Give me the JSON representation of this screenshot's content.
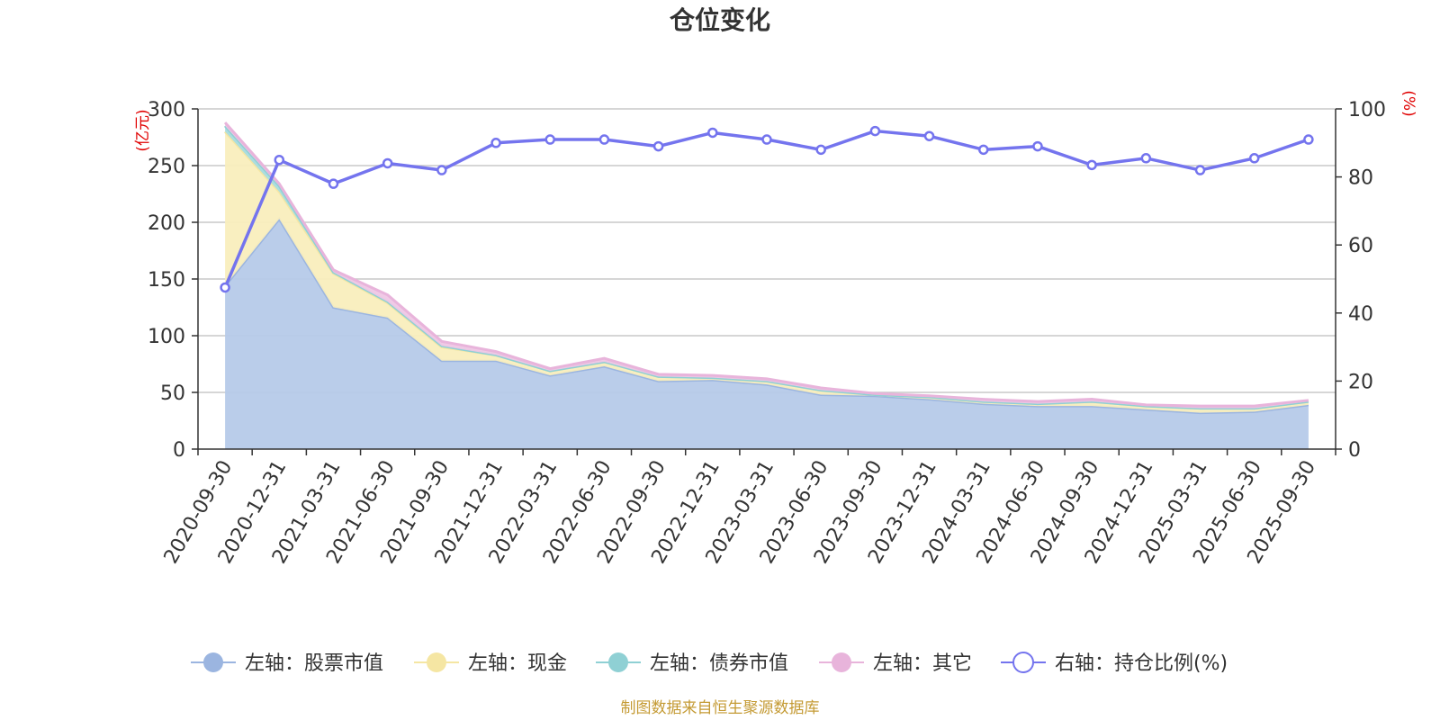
{
  "chart_data": {
    "type": "area",
    "title": "仓位变化",
    "categories": [
      "2020-09-30",
      "2020-12-31",
      "2021-03-31",
      "2021-06-30",
      "2021-09-30",
      "2021-12-31",
      "2022-03-31",
      "2022-06-30",
      "2022-09-30",
      "2022-12-31",
      "2023-03-31",
      "2023-06-30",
      "2023-09-30",
      "2023-12-31",
      "2024-03-31",
      "2024-06-30",
      "2024-09-30",
      "2024-12-31",
      "2025-03-31",
      "2025-06-30",
      "2025-09-30"
    ],
    "left_axis": {
      "unit": "(亿元)",
      "ylim": [
        0,
        300
      ],
      "ticks": [
        0,
        50,
        100,
        150,
        200,
        250,
        300
      ]
    },
    "right_axis": {
      "unit": "(%)",
      "ylim": [
        0,
        100
      ],
      "ticks": [
        0,
        20,
        40,
        60,
        80,
        100
      ]
    },
    "stacked_series": [
      {
        "name": "左轴：股票市值",
        "color": "#9bb5e0",
        "fill": "#b6cae9",
        "values": [
          144,
          203,
          125,
          116,
          78,
          78,
          65,
          73,
          60,
          61,
          57,
          48,
          47,
          44,
          40,
          38,
          38,
          35,
          32,
          33,
          39
        ]
      },
      {
        "name": "左轴：现金",
        "color": "#f5e6a3",
        "fill": "#f9eebd",
        "values": [
          136,
          24,
          30,
          13,
          12,
          5,
          4,
          4,
          4,
          2,
          3,
          4,
          1,
          2,
          2,
          2,
          4,
          3,
          4,
          3,
          3
        ]
      },
      {
        "name": "左轴：债券市值",
        "color": "#8fd0d4",
        "fill": "#a8dcdf",
        "values": [
          5,
          5,
          1,
          1,
          1,
          0,
          0,
          0,
          0,
          0,
          0,
          0,
          0,
          0,
          0,
          0,
          0,
          0,
          0,
          0,
          0
        ]
      },
      {
        "name": "左轴：其它",
        "color": "#e8b4db",
        "fill": "#efc7e5",
        "values": [
          3,
          2,
          2,
          6,
          4,
          3,
          2,
          3,
          2,
          2,
          2,
          2,
          1,
          1,
          2,
          2,
          2,
          1,
          2,
          2,
          1
        ]
      }
    ],
    "line_series": {
      "name": "右轴：持仓比例(%)",
      "axis": "right",
      "color": "#7474ee",
      "values": [
        47.5,
        85,
        78,
        84,
        82,
        90,
        91,
        91,
        89,
        93,
        91,
        88,
        93.5,
        92,
        88,
        89,
        83.5,
        85.5,
        82,
        85.5,
        91
      ]
    },
    "legend_position": "bottom-center",
    "grid": true
  },
  "source_note": "制图数据来自恒生聚源数据库"
}
